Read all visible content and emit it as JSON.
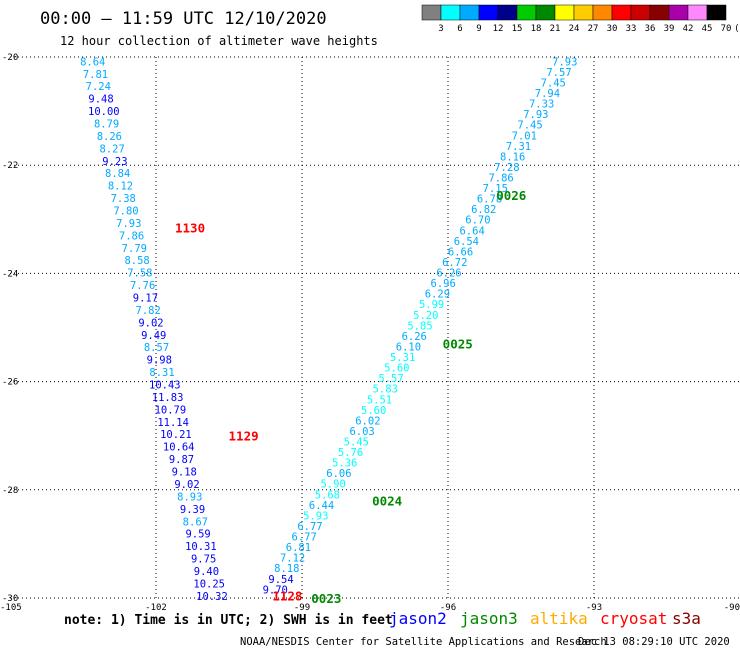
{
  "header": {
    "title": "00:00 – 11:59 UTC 12/10/2020",
    "subtitle": "12 hour collection of altimeter wave heights"
  },
  "color_scale": {
    "colors": [
      "#808080",
      "#00ffff",
      "#00aaff",
      "#0000ff",
      "#00008b",
      "#00cc00",
      "#008800",
      "#ffff00",
      "#ffcc00",
      "#ff8800",
      "#ff0000",
      "#cc0000",
      "#880000",
      "#aa00aa",
      "#ff88ff",
      "#000000"
    ],
    "labels": [
      "3",
      "6",
      "9",
      "12",
      "15",
      "18",
      "21",
      "24",
      "27",
      "30",
      "33",
      "36",
      "39",
      "42",
      "45",
      "70",
      "(ft)"
    ]
  },
  "footer": {
    "note": "note: 1) Time is in UTC; 2) SWH is in feet",
    "credit": "NOAA/NESDIS Center for Satellite Applications and Research",
    "timestamp": "Dec 13 08:29:10 UTC 2020",
    "satellites": [
      {
        "name": "jason2",
        "color": "#0000ff"
      },
      {
        "name": "jason3",
        "color": "#008800"
      },
      {
        "name": "altika",
        "color": "#ffaa00"
      },
      {
        "name": "cryosat",
        "color": "#ff0000"
      },
      {
        "name": "s3a",
        "color": "#880000"
      }
    ]
  },
  "chart_data": {
    "type": "scatter",
    "title": "00:00 – 11:59 UTC 12/10/2020",
    "subtitle": "12 hour collection of altimeter wave heights",
    "xlim": [
      -105,
      -90
    ],
    "ylim": [
      -30,
      -20
    ],
    "x_ticks": [
      -105,
      -102,
      -99,
      -96,
      -93,
      -90
    ],
    "y_ticks": [
      -20,
      -22,
      -24,
      -26,
      -28,
      -30
    ],
    "x_tick_labels": [
      "-105",
      "-102",
      "-99",
      "-96",
      "-93",
      "-90"
    ],
    "y_tick_labels": [
      "-20",
      "-22",
      "-24",
      "-26",
      "-28",
      "-30"
    ],
    "grid": true,
    "tracks": [
      {
        "lon_start": -103.3,
        "lat_start": -20.08,
        "lon_end": -100.85,
        "lat_end": -29.96,
        "values": [
          "8.64",
          "7.81",
          "7.24",
          "9.48",
          "10.00",
          "8.79",
          "8.26",
          "8.27",
          "9.23",
          "8.84",
          "8.12",
          "7.38",
          "7.80",
          "7.93",
          "7.86",
          "7.79",
          "8.58",
          "7.58",
          "7.76",
          "9.17",
          "7.82",
          "9.02",
          "9.49",
          "8.57",
          "9.98",
          "8.31",
          "10.43",
          "11.83",
          "10.79",
          "11.14",
          "10.21",
          "10.64",
          "9.87",
          "9.18",
          "9.02",
          "8.93",
          "9.39",
          "8.67",
          "9.59",
          "10.31",
          "9.75",
          "9.40",
          "10.25",
          "10.32"
        ]
      },
      {
        "lon_start": -93.6,
        "lat_start": -20.08,
        "lon_end": -99.55,
        "lat_end": -29.84,
        "values": [
          "7.93",
          "7.57",
          "7.45",
          "7.94",
          "7.33",
          "7.93",
          "7.45",
          "7.01",
          "7.31",
          "8.16",
          "7.28",
          "7.86",
          "7.15",
          "6.78",
          "6.82",
          "6.70",
          "6.64",
          "6.54",
          "6.66",
          "6.72",
          "6.26",
          "6.96",
          "6.29",
          "5.99",
          "5.20",
          "5.85",
          "6.26",
          "6.10",
          "5.31",
          "5.60",
          "5.57",
          "5.83",
          "5.51",
          "5.60",
          "6.02",
          "6.03",
          "5.45",
          "5.76",
          "5.36",
          "6.06",
          "5.90",
          "5.68",
          "6.44",
          "5.93",
          "6.77",
          "6.77",
          "6.81",
          "7.12",
          "8.18",
          "9.54",
          "9.70"
        ]
      }
    ],
    "time_labels": [
      {
        "text": "1130",
        "lon": -101.3,
        "lat": -23.15,
        "color": "#ff0000"
      },
      {
        "text": "1129",
        "lon": -100.2,
        "lat": -27.0,
        "color": "#ff0000"
      },
      {
        "text": "1128",
        "lon": -99.3,
        "lat": -29.95,
        "color": "#ff0000"
      },
      {
        "text": "0026",
        "lon": -94.7,
        "lat": -22.55,
        "color": "#008800"
      },
      {
        "text": "0025",
        "lon": -95.8,
        "lat": -25.3,
        "color": "#008800"
      },
      {
        "text": "0024",
        "lon": -97.25,
        "lat": -28.2,
        "color": "#008800"
      },
      {
        "text": "0023",
        "lon": -98.5,
        "lat": -30.0,
        "color": "#008800"
      }
    ]
  }
}
